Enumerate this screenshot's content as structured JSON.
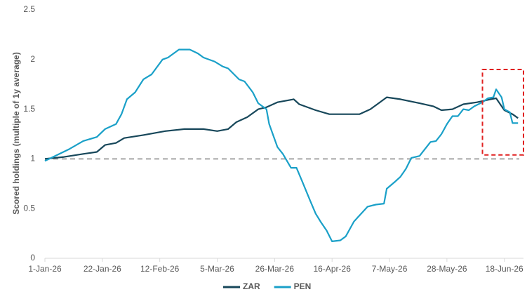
{
  "chart_data": {
    "type": "line",
    "y_label": "Scored holdings (multiple of 1y average)",
    "xlim": [
      "2026-01-01",
      "2026-06-25"
    ],
    "xticks": [
      {
        "value": "2026-01-01",
        "label": "1-Jan-26"
      },
      {
        "value": "2026-01-22",
        "label": "22-Jan-26"
      },
      {
        "value": "2026-02-12",
        "label": "12-Feb-26"
      },
      {
        "value": "2026-03-05",
        "label": "5-Mar-26"
      },
      {
        "value": "2026-03-26",
        "label": "26-Mar-26"
      },
      {
        "value": "2026-04-16",
        "label": "16-Apr-26"
      },
      {
        "value": "2026-05-07",
        "label": "7-May-26"
      },
      {
        "value": "2026-05-28",
        "label": "28-May-26"
      },
      {
        "value": "2026-06-18",
        "label": "18-Jun-26"
      }
    ],
    "ylim": [
      0,
      2.5
    ],
    "yticks": [
      0,
      0.5,
      1,
      {
        "value": 1.5,
        "label": "1.5"
      },
      2,
      2.5
    ],
    "reference_line": 1,
    "highlight": {
      "x": [
        "2026-06-10",
        "2026-06-25"
      ],
      "y": [
        1.04,
        1.9
      ],
      "color": "#e02020"
    },
    "series": [
      {
        "name": "ZAR",
        "color": "#17475a",
        "x": [
          "2026-01-01",
          "2026-01-08",
          "2026-01-15",
          "2026-01-20",
          "2026-01-23",
          "2026-01-27",
          "2026-01-30",
          "2026-02-06",
          "2026-02-14",
          "2026-02-21",
          "2026-02-28",
          "2026-03-05",
          "2026-03-09",
          "2026-03-12",
          "2026-03-16",
          "2026-03-20",
          "2026-03-23",
          "2026-03-27",
          "2026-04-02",
          "2026-04-04",
          "2026-04-10",
          "2026-04-15",
          "2026-04-26",
          "2026-04-30",
          "2026-05-03",
          "2026-05-06",
          "2026-05-11",
          "2026-05-18",
          "2026-05-23",
          "2026-05-26",
          "2026-05-30",
          "2026-06-03",
          "2026-06-08",
          "2026-06-13",
          "2026-06-15",
          "2026-06-18",
          "2026-06-21",
          "2026-06-23"
        ],
        "values": [
          1.0,
          1.02,
          1.05,
          1.07,
          1.14,
          1.16,
          1.21,
          1.24,
          1.28,
          1.3,
          1.3,
          1.28,
          1.3,
          1.37,
          1.42,
          1.5,
          1.52,
          1.57,
          1.6,
          1.55,
          1.49,
          1.45,
          1.45,
          1.5,
          1.56,
          1.62,
          1.6,
          1.56,
          1.53,
          1.49,
          1.5,
          1.55,
          1.57,
          1.6,
          1.61,
          1.49,
          1.45,
          1.41
        ]
      },
      {
        "name": "PEN",
        "color": "#1aa0c8",
        "x": [
          "2026-01-01",
          "2026-01-10",
          "2026-01-15",
          "2026-01-20",
          "2026-01-23",
          "2026-01-27",
          "2026-01-29",
          "2026-01-31",
          "2026-02-03",
          "2026-02-06",
          "2026-02-09",
          "2026-02-13",
          "2026-02-15",
          "2026-02-19",
          "2026-02-23",
          "2026-02-26",
          "2026-02-28",
          "2026-03-04",
          "2026-03-07",
          "2026-03-09",
          "2026-03-13",
          "2026-03-15",
          "2026-03-18",
          "2026-03-20",
          "2026-03-23",
          "2026-03-24",
          "2026-03-27",
          "2026-03-29",
          "2026-04-01",
          "2026-04-03",
          "2026-04-05",
          "2026-04-08",
          "2026-04-10",
          "2026-04-12",
          "2026-04-14",
          "2026-04-16",
          "2026-04-19",
          "2026-04-21",
          "2026-04-24",
          "2026-04-26",
          "2026-04-29",
          "2026-05-02",
          "2026-05-05",
          "2026-05-06",
          "2026-05-09",
          "2026-05-11",
          "2026-05-13",
          "2026-05-15",
          "2026-05-18",
          "2026-05-20",
          "2026-05-22",
          "2026-05-24",
          "2026-05-26",
          "2026-05-28",
          "2026-05-30",
          "2026-06-01",
          "2026-06-03",
          "2026-06-05",
          "2026-06-07",
          "2026-06-10",
          "2026-06-12",
          "2026-06-14",
          "2026-06-15",
          "2026-06-17",
          "2026-06-18",
          "2026-06-20",
          "2026-06-21",
          "2026-06-23"
        ],
        "values": [
          0.98,
          1.1,
          1.18,
          1.22,
          1.3,
          1.35,
          1.45,
          1.6,
          1.67,
          1.8,
          1.85,
          2.0,
          2.02,
          2.1,
          2.1,
          2.06,
          2.02,
          1.98,
          1.93,
          1.91,
          1.8,
          1.78,
          1.67,
          1.56,
          1.5,
          1.35,
          1.12,
          1.05,
          0.91,
          0.91,
          0.78,
          0.58,
          0.45,
          0.36,
          0.28,
          0.17,
          0.18,
          0.22,
          0.37,
          0.43,
          0.52,
          0.54,
          0.55,
          0.7,
          0.77,
          0.82,
          0.9,
          1.01,
          1.03,
          1.1,
          1.17,
          1.18,
          1.25,
          1.35,
          1.43,
          1.43,
          1.5,
          1.49,
          1.53,
          1.57,
          1.61,
          1.62,
          1.7,
          1.62,
          1.5,
          1.47,
          1.36,
          1.36
        ]
      }
    ]
  }
}
